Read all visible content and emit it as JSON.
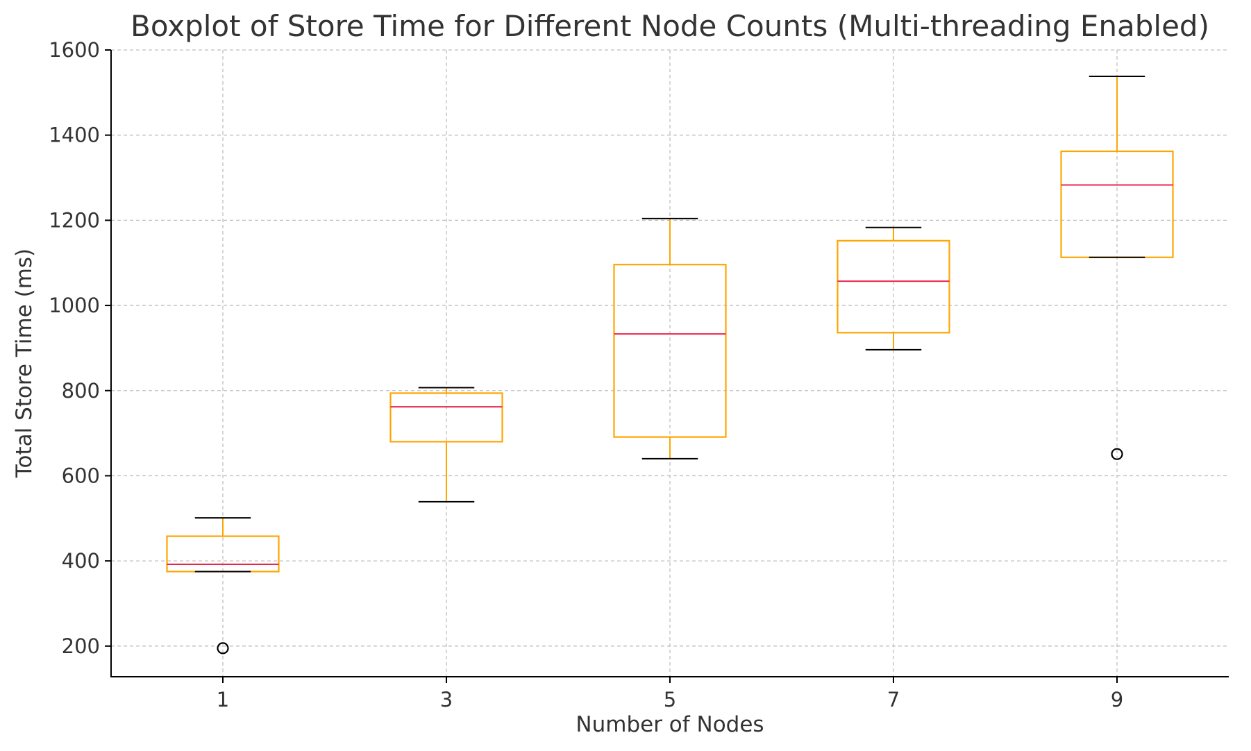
{
  "chart_data": {
    "type": "box",
    "title": "Boxplot of Store Time for Different Node Counts (Multi-threading Enabled)",
    "xlabel": "Number of Nodes",
    "ylabel": "Total Store Time (ms)",
    "categories": [
      "1",
      "3",
      "5",
      "7",
      "9"
    ],
    "ylim": [
      128,
      1600
    ],
    "yticks": [
      200,
      400,
      600,
      800,
      1000,
      1200,
      1400,
      1600
    ],
    "grid": true,
    "boxes": [
      {
        "category": "1",
        "whisker_low": 375,
        "q1": 375,
        "median": 392,
        "q3": 458,
        "whisker_high": 501,
        "outliers": [
          195
        ]
      },
      {
        "category": "3",
        "whisker_low": 539,
        "q1": 680,
        "median": 762,
        "q3": 794,
        "whisker_high": 807,
        "outliers": []
      },
      {
        "category": "5",
        "whisker_low": 640,
        "q1": 691,
        "median": 933,
        "q3": 1096,
        "whisker_high": 1204,
        "outliers": []
      },
      {
        "category": "7",
        "whisker_low": 896,
        "q1": 936,
        "median": 1057,
        "q3": 1152,
        "whisker_high": 1183,
        "outliers": []
      },
      {
        "category": "9",
        "whisker_low": 1113,
        "q1": 1113,
        "median": 1283,
        "q3": 1362,
        "whisker_high": 1538,
        "outliers": [
          651
        ]
      }
    ],
    "colors": {
      "box": "#FFA500",
      "median": "#E8274D",
      "caps": "#000000",
      "outlier": "#000000",
      "grid": "#BFBFBF",
      "axis": "#000000",
      "text": "#333333"
    }
  }
}
